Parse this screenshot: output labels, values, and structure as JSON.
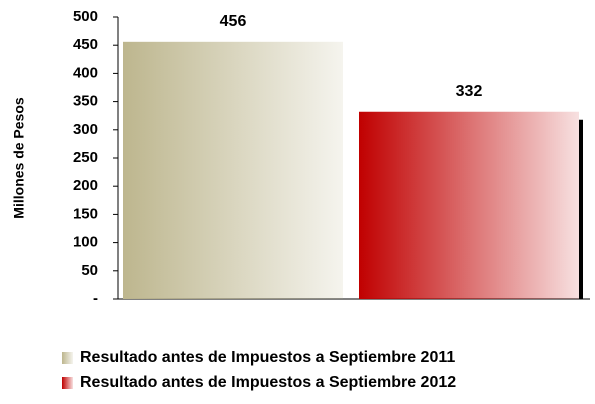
{
  "chart_data": {
    "type": "bar",
    "ylabel": "Millones de Pesos",
    "series": [
      {
        "name": "Resultado antes de Impuestos a Septiembre 2011",
        "color": "#bdb68e",
        "values": [
          456
        ]
      },
      {
        "name": "Resultado antes de Impuestos a Septiembre 2012",
        "color": "#c00000",
        "values": [
          332
        ]
      }
    ],
    "ylim": [
      0,
      500
    ],
    "yticks": [
      {
        "value": 0,
        "label": "-"
      },
      50,
      100,
      150,
      200,
      250,
      300,
      350,
      400,
      450,
      500
    ],
    "legend": "bottom"
  }
}
